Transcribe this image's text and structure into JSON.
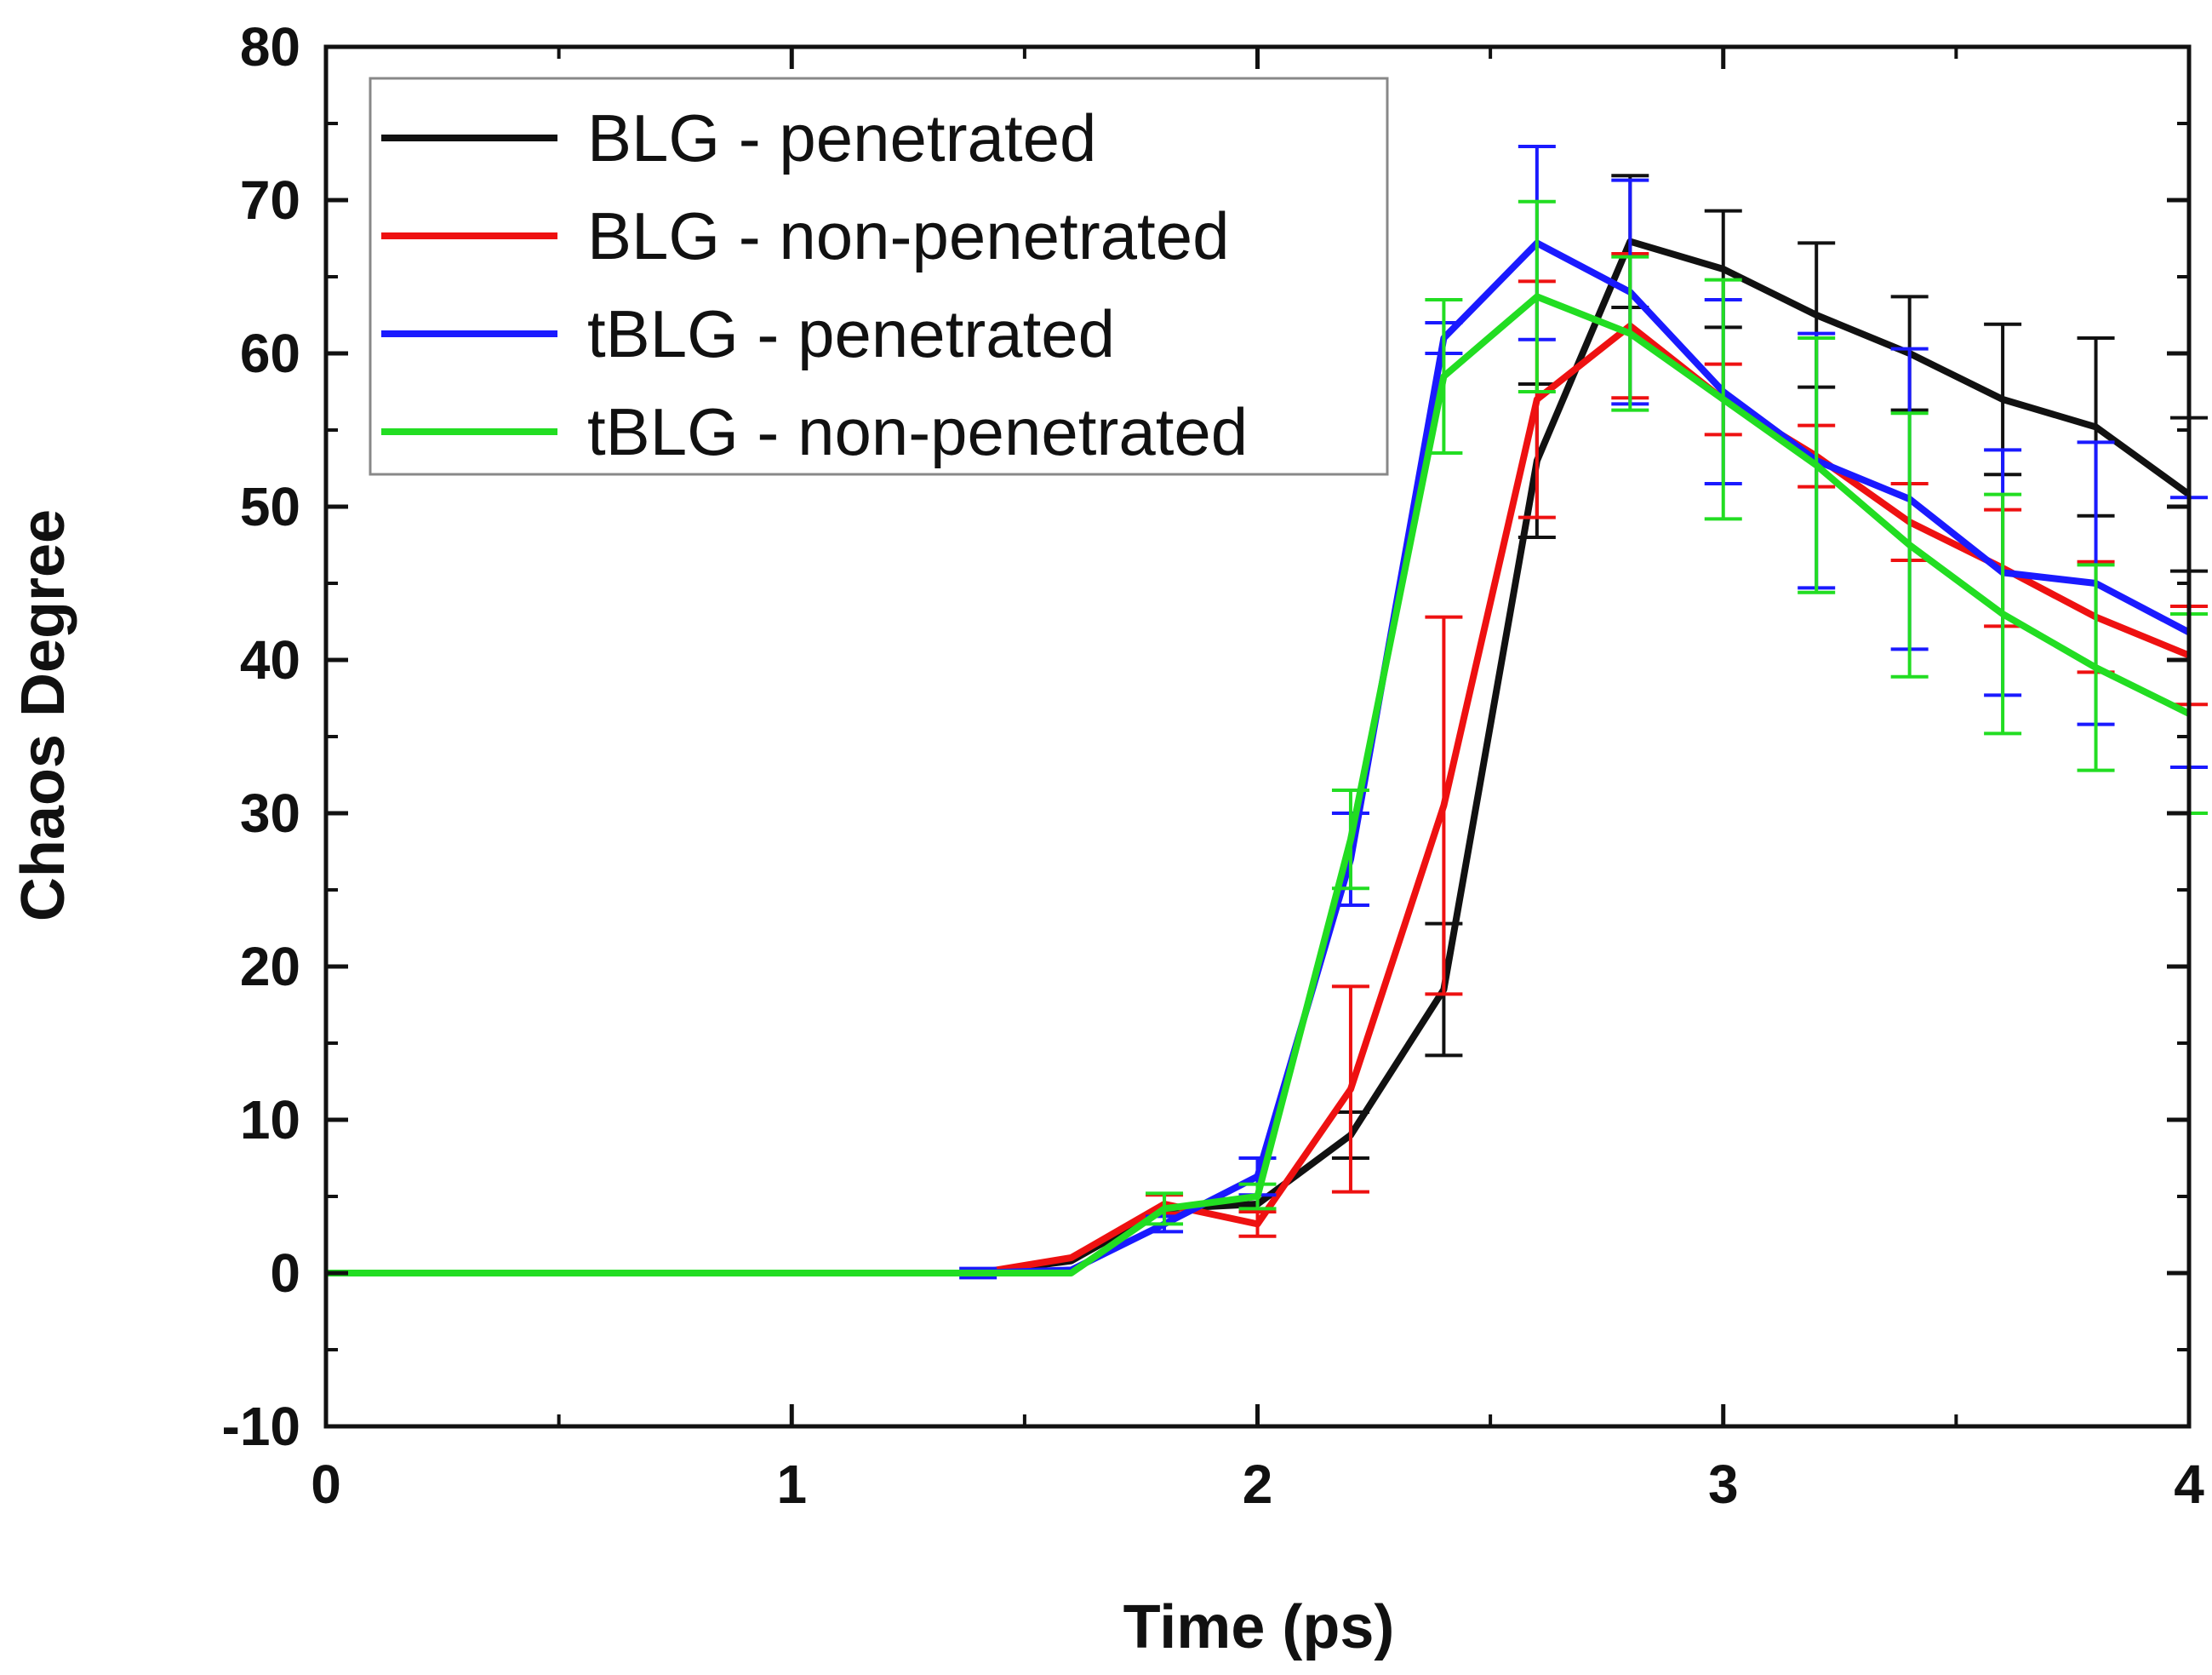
{
  "chart_data": {
    "type": "line",
    "title": "",
    "xlabel": "Time (ps)",
    "ylabel": "Chaos Degree",
    "xlim": [
      0,
      4
    ],
    "ylim": [
      -10,
      80
    ],
    "x_ticks": [
      "0",
      "1",
      "2",
      "3",
      "4"
    ],
    "y_ticks": [
      "-10",
      "0",
      "10",
      "20",
      "30",
      "40",
      "50",
      "60",
      "70",
      "80"
    ],
    "legend_position": "top-left",
    "grid": false,
    "series": [
      {
        "name": "BLG - penetrated",
        "color": "#111111",
        "x": [
          0,
          1.4,
          1.6,
          1.8,
          2.0,
          2.2,
          2.4,
          2.6,
          2.8,
          3.0,
          3.2,
          3.4,
          3.6,
          3.8,
          4.0
        ],
        "y": [
          0,
          0,
          0.8,
          4.2,
          4.5,
          9.0,
          18.5,
          53.0,
          67.3,
          65.5,
          62.5,
          60.0,
          57.0,
          55.2,
          50.8
        ],
        "err": [
          0,
          0,
          0,
          0,
          0,
          1.5,
          4.3,
          5.0,
          4.3,
          3.8,
          4.7,
          3.7,
          4.9,
          5.8,
          5.0
        ]
      },
      {
        "name": "BLG - non-penetrated",
        "color": "#ee1111",
        "x": [
          0,
          1.4,
          1.6,
          1.8,
          2.0,
          2.2,
          2.4,
          2.6,
          2.8,
          3.0,
          3.2,
          3.4,
          3.6,
          3.8,
          4.0
        ],
        "y": [
          0,
          0,
          1.0,
          4.5,
          3.2,
          12.0,
          30.5,
          57.0,
          61.8,
          57.0,
          53.3,
          49.0,
          46.0,
          42.8,
          40.3
        ],
        "err": [
          0,
          0,
          0,
          0.6,
          0.8,
          6.7,
          12.3,
          7.7,
          4.7,
          2.3,
          2.0,
          2.5,
          3.8,
          3.6,
          3.2
        ]
      },
      {
        "name": "tBLG - penetrated",
        "color": "#1a1aff",
        "x": [
          0,
          1.4,
          1.6,
          1.8,
          2.0,
          2.2,
          2.4,
          2.6,
          2.8,
          3.0,
          3.2,
          3.4,
          3.6,
          3.8,
          4.0
        ],
        "y": [
          0,
          0,
          0.2,
          3.2,
          6.3,
          27.0,
          61.0,
          67.2,
          64.0,
          57.5,
          53.0,
          50.5,
          45.7,
          45.0,
          41.8
        ],
        "err": [
          0,
          0.3,
          0,
          0.5,
          1.2,
          3.0,
          1.0,
          6.3,
          7.3,
          6.0,
          8.3,
          9.8,
          8.0,
          9.2,
          8.8
        ]
      },
      {
        "name": "tBLG - non-penetrated",
        "color": "#22dd22",
        "x": [
          0,
          1.4,
          1.6,
          1.8,
          2.0,
          2.2,
          2.4,
          2.6,
          2.8,
          3.0,
          3.2,
          3.4,
          3.6,
          3.8,
          4.0
        ],
        "y": [
          0,
          0,
          0,
          4.2,
          5.0,
          28.3,
          58.5,
          63.7,
          61.3,
          57.0,
          52.7,
          47.5,
          43.0,
          39.5,
          36.5
        ],
        "err": [
          0,
          0,
          0,
          1.0,
          0.8,
          3.2,
          5.0,
          6.2,
          5.0,
          7.8,
          8.3,
          8.6,
          7.8,
          6.7,
          6.5
        ]
      }
    ]
  }
}
